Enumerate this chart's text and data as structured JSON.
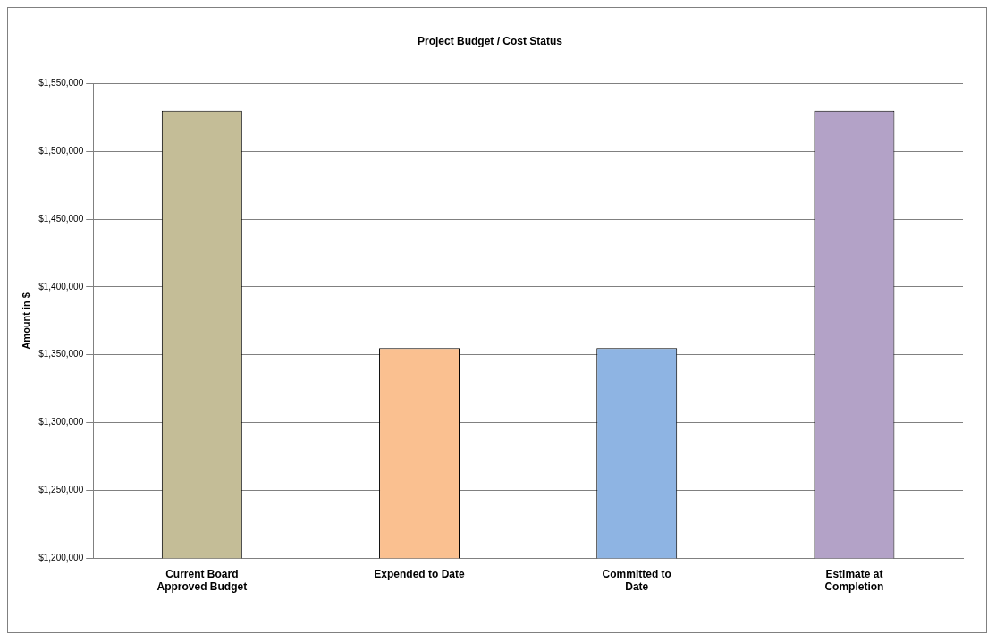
{
  "chart_data": {
    "type": "bar",
    "title": "Project Budget / Cost Status",
    "ylabel": "Amount in $",
    "categories": [
      "Current Board Approved Budget",
      "Expended to Date",
      "Committed to Date",
      "Estimate at Completion"
    ],
    "values": [
      1530000,
      1355000,
      1355000,
      1530000
    ],
    "colors": [
      "#c4bd97",
      "#fac090",
      "#8eb4e3",
      "#b3a2c7"
    ],
    "ylim": [
      1200000,
      1550000
    ],
    "yticks": [
      {
        "value": 1200000,
        "label": "$1,200,000"
      },
      {
        "value": 1250000,
        "label": "$1,250,000"
      },
      {
        "value": 1300000,
        "label": "$1,300,000"
      },
      {
        "value": 1350000,
        "label": "$1,350,000"
      },
      {
        "value": 1400000,
        "label": "$1,400,000"
      },
      {
        "value": 1450000,
        "label": "$1,450,000"
      },
      {
        "value": 1500000,
        "label": "$1,500,000"
      },
      {
        "value": 1550000,
        "label": "$1,550,000"
      }
    ],
    "grid": "y",
    "legend": false
  }
}
